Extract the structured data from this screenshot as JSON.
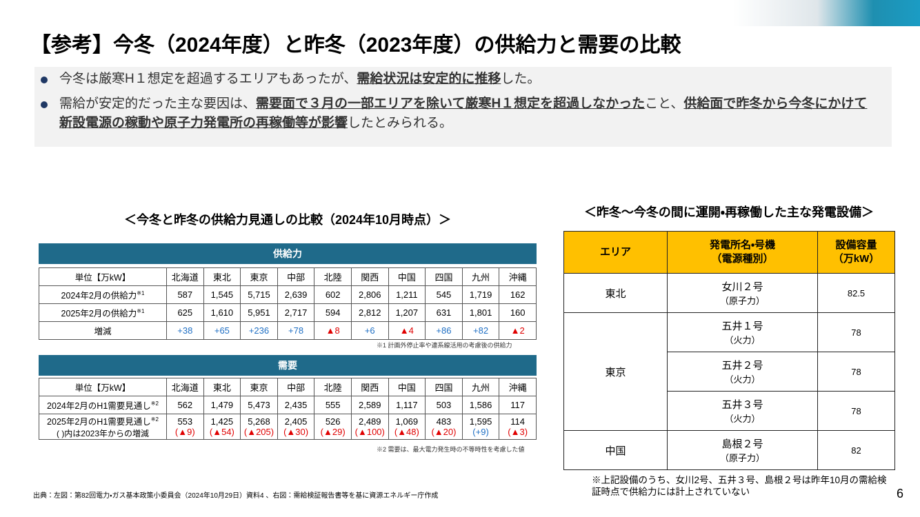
{
  "header": {
    "title": "【参考】今冬（2024年度）と昨冬（2023年度）の供給力と需要の比較"
  },
  "bullets": [
    {
      "segments": [
        {
          "text": "今冬は厳寒H１想定を超過するエリアもあったが、",
          "emphasis": false
        },
        {
          "text": "需給状況は安定的に推移",
          "emphasis": true
        },
        {
          "text": "した。",
          "emphasis": false
        }
      ]
    },
    {
      "segments": [
        {
          "text": "需給が安定的だった主な要因は、",
          "emphasis": false
        },
        {
          "text": "需要面で３月の一部エリアを除いて厳寒H１想定を超過しなかった",
          "emphasis": true
        },
        {
          "text": "こと、",
          "emphasis": false
        },
        {
          "text": "供給面で昨冬から今冬にかけて新設電源の稼動や原子力発電所の再稼働等が影響",
          "emphasis": true
        },
        {
          "text": "したとみられる。",
          "emphasis": false
        }
      ]
    }
  ],
  "left": {
    "title": "＜今冬と昨冬の供給力見通しの比較（2024年10月時点）＞",
    "supply": {
      "banner": "供給力",
      "unit": "単位【万kW】",
      "regions": [
        "北海道",
        "東北",
        "東京",
        "中部",
        "北陸",
        "関西",
        "中国",
        "四国",
        "九州",
        "沖縄"
      ],
      "rows": [
        {
          "label": "2024年2月の供給力",
          "note": "※1",
          "cells": [
            "587",
            "1,545",
            "5,715",
            "2,639",
            "602",
            "2,806",
            "1,211",
            "545",
            "1,719",
            "162"
          ]
        },
        {
          "label": "2025年2月の供給力",
          "note": "※1",
          "cells": [
            "625",
            "1,610",
            "5,951",
            "2,717",
            "594",
            "2,812",
            "1,207",
            "631",
            "1,801",
            "160"
          ]
        },
        {
          "label": "増減",
          "cells": [
            "+38",
            "+65",
            "+236",
            "+78",
            "▲8",
            "+6",
            "▲4",
            "+86",
            "+82",
            "▲2"
          ]
        }
      ],
      "footnote": "※1  計画外停止率や連系線活用の考慮後の供給力"
    },
    "demand": {
      "banner": "需要",
      "unit": "単位【万kW】",
      "regions": [
        "北海道",
        "東北",
        "東京",
        "中部",
        "北陸",
        "関西",
        "中国",
        "四国",
        "九州",
        "沖縄"
      ],
      "rows": [
        {
          "label": "2024年2月のH1需要見通し",
          "note": "※2",
          "cells": [
            "562",
            "1,479",
            "5,473",
            "2,435",
            "555",
            "2,589",
            "1,117",
            "503",
            "1,586",
            "117"
          ]
        },
        {
          "label": "2025年2月のH1需要見通し",
          "note": "※2",
          "sublabel": "( )内は2023年からの増減",
          "cells": [
            "553",
            "1,425",
            "5,268",
            "2,405",
            "526",
            "2,489",
            "1,069",
            "483",
            "1,595",
            "114"
          ],
          "changes": [
            "(▲9)",
            "(▲54)",
            "(▲205)",
            "(▲30)",
            "(▲29)",
            "(▲100)",
            "(▲48)",
            "(▲20)",
            "(+9)",
            "(▲3)"
          ]
        }
      ],
      "footnote": "※2  需要は、最大電力発生時の不等時性を考慮した値"
    }
  },
  "right": {
    "title": "＜昨冬～今冬の間に運開・再稼働した主な発電設備＞",
    "header": {
      "area": "エリア",
      "plant": "発電所名・号機",
      "plant_sub": "（電源種別）",
      "capacity": "設備容量",
      "capacity_sub": "（万kW）"
    },
    "groups": [
      {
        "area": "東北",
        "units": [
          {
            "name": "女川２号",
            "type": "（原子力）",
            "capacity": 82.5
          }
        ]
      },
      {
        "area": "東京",
        "units": [
          {
            "name": "五井１号",
            "type": "（火力）",
            "capacity": 78
          },
          {
            "name": "五井２号",
            "type": "（火力）",
            "capacity": 78
          },
          {
            "name": "五井３号",
            "type": "（火力）",
            "capacity": 78
          }
        ]
      },
      {
        "area": "中国",
        "units": [
          {
            "name": "島根２号",
            "type": "（原子力）",
            "capacity": 82
          }
        ]
      }
    ],
    "note": "※上記設備のうち、女川2号、五井３号、島根２号は昨年10月の需給検証時点で供給力には計上されていない"
  },
  "footer": {
    "source": "出典：左図：第82回電力・ガス基本政策小委員会（2024年10月29日）資料4 、右図：需給検証報告書等を基に資源エネルギー庁作成",
    "page": "6"
  }
}
